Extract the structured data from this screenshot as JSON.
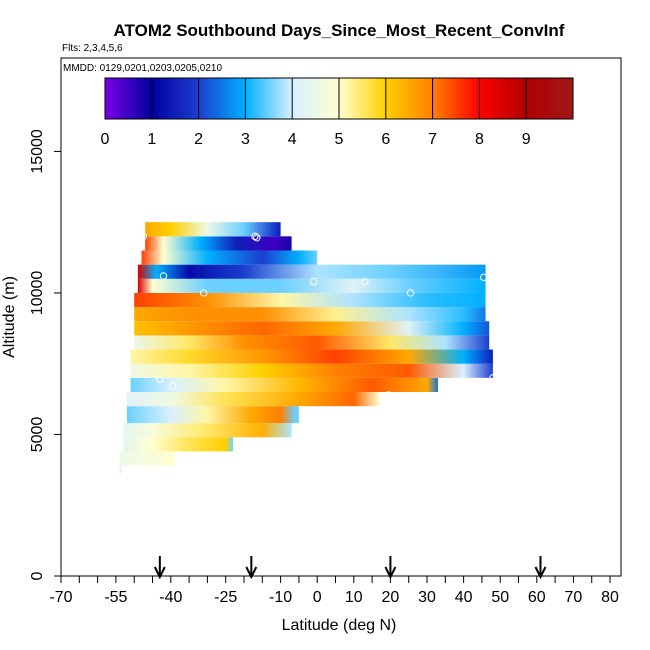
{
  "chart_data": {
    "type": "heatmap",
    "title": "ATOM2 Southbound Days_Since_Most_Recent_ConvInf",
    "flights_label": "Flts: 2,3,4,5,6",
    "dates_label": "MMDD: 0129,0201,0203,0205,0210",
    "xlabel": "Latitude (deg N)",
    "ylabel": "Altitude (m)",
    "xlim": [
      -70,
      83
    ],
    "ylim": [
      0,
      18300
    ],
    "x_ticks": [
      -70,
      -55,
      -40,
      -25,
      -10,
      0,
      10,
      20,
      30,
      40,
      50,
      60,
      70,
      80
    ],
    "x_tick_labels": [
      "-70",
      "-55",
      "-40",
      "-25",
      "-10",
      "0",
      "10",
      "20",
      "30",
      "40",
      "50",
      "60",
      "70",
      "80"
    ],
    "x_minor_ticks": [
      -65,
      -60,
      -50,
      -45,
      -35,
      -30,
      -20,
      -15,
      -5,
      5,
      15,
      25,
      35,
      45,
      55,
      65,
      75
    ],
    "y_ticks": [
      0,
      5000,
      10000,
      15000
    ],
    "y_tick_labels": [
      "0",
      "5000",
      "10000",
      "15000"
    ],
    "colorbar": {
      "min": 0,
      "max": 10,
      "ticks": [
        0,
        1,
        2,
        3,
        4,
        5,
        6,
        7,
        8,
        9
      ],
      "tick_labels": [
        "0",
        "1",
        "2",
        "3",
        "4",
        "5",
        "6",
        "7",
        "8",
        "9"
      ],
      "colors": [
        "#7b00e8",
        "#0000a0",
        "#1c3ecf",
        "#00b0ff",
        "#d8f0ff",
        "#ffffd0",
        "#ffd000",
        "#ff8000",
        "#ff0000",
        "#b00000",
        "#a01818"
      ]
    },
    "arrow_latitudes": [
      -43,
      -18,
      20,
      61
    ],
    "layers": [
      {
        "alt0": 3600,
        "alt1": 3900,
        "lat0": -54,
        "lat1": -53.5,
        "knots": [
          [
            -54,
            4.3
          ]
        ]
      },
      {
        "alt0": 3900,
        "alt1": 4400,
        "lat0": -54,
        "lat1": -39,
        "knots": [
          [
            -54,
            4.5
          ],
          [
            -39,
            5
          ]
        ]
      },
      {
        "alt0": 4400,
        "alt1": 4900,
        "lat0": -53,
        "lat1": -23,
        "knots": [
          [
            -53,
            4.3
          ],
          [
            -45,
            5
          ],
          [
            -35,
            5.6
          ],
          [
            -25,
            6
          ],
          [
            -23,
            3.5
          ]
        ]
      },
      {
        "alt0": 4900,
        "alt1": 5400,
        "lat0": -53,
        "lat1": -7,
        "knots": [
          [
            -53,
            4.3
          ],
          [
            -45,
            4.8
          ],
          [
            -30,
            5.5
          ],
          [
            -15,
            6.4
          ],
          [
            -7,
            3.8
          ]
        ]
      },
      {
        "alt0": 5400,
        "alt1": 6000,
        "lat0": -52,
        "lat1": -5,
        "knots": [
          [
            -52,
            3.5
          ],
          [
            -40,
            4
          ],
          [
            -30,
            5.2
          ],
          [
            -18,
            6.5
          ],
          [
            -10,
            7
          ],
          [
            -6,
            3.5
          ]
        ]
      },
      {
        "alt0": 6000,
        "alt1": 6500,
        "lat0": -52,
        "lat1": 17,
        "knots": [
          [
            -52,
            4.2
          ],
          [
            -40,
            4.6
          ],
          [
            -25,
            5.6
          ],
          [
            -5,
            6.5
          ],
          [
            10,
            7.2
          ],
          [
            17,
            5
          ]
        ]
      },
      {
        "alt0": 6500,
        "alt1": 7000,
        "lat0": -51,
        "lat1": 33,
        "knots": [
          [
            -51,
            3.5
          ],
          [
            -40,
            4
          ],
          [
            -25,
            5.2
          ],
          [
            -5,
            6.3
          ],
          [
            15,
            7.3
          ],
          [
            30,
            6.5
          ],
          [
            33,
            2.5
          ]
        ]
      },
      {
        "alt0": 7000,
        "alt1": 7500,
        "lat0": -51,
        "lat1": 48,
        "knots": [
          [
            -51,
            4.6
          ],
          [
            -35,
            5.2
          ],
          [
            -15,
            6
          ],
          [
            5,
            7
          ],
          [
            25,
            7.3
          ],
          [
            40,
            4
          ],
          [
            48,
            2
          ]
        ]
      },
      {
        "alt0": 7500,
        "alt1": 8000,
        "lat0": -51,
        "lat1": 48,
        "knots": [
          [
            -51,
            5.2
          ],
          [
            -35,
            5.8
          ],
          [
            -15,
            6.7
          ],
          [
            5,
            7.5
          ],
          [
            25,
            6.5
          ],
          [
            40,
            3
          ],
          [
            48,
            1.5
          ]
        ]
      },
      {
        "alt0": 8000,
        "alt1": 8500,
        "lat0": -50,
        "lat1": 47,
        "knots": [
          [
            -50,
            4.5
          ],
          [
            -35,
            5.5
          ],
          [
            -20,
            6.8
          ],
          [
            0,
            7.3
          ],
          [
            20,
            5.5
          ],
          [
            35,
            3.8
          ],
          [
            47,
            2
          ]
        ]
      },
      {
        "alt0": 8500,
        "alt1": 9000,
        "lat0": -50,
        "lat1": 47,
        "knots": [
          [
            -50,
            6.2
          ],
          [
            -35,
            6.7
          ],
          [
            -15,
            7.2
          ],
          [
            5,
            6.5
          ],
          [
            25,
            4.2
          ],
          [
            40,
            3
          ],
          [
            47,
            2.2
          ]
        ]
      },
      {
        "alt0": 9000,
        "alt1": 9500,
        "lat0": -50,
        "lat1": 46,
        "knots": [
          [
            -50,
            6.5
          ],
          [
            -35,
            6.8
          ],
          [
            -15,
            6.8
          ],
          [
            5,
            5.3
          ],
          [
            25,
            3.8
          ],
          [
            40,
            3.2
          ],
          [
            46,
            2.5
          ]
        ]
      },
      {
        "alt0": 9500,
        "alt1": 10000,
        "lat0": -50,
        "lat1": 46,
        "knots": [
          [
            -50,
            7.5
          ],
          [
            -30,
            6.8
          ],
          [
            -10,
            5.2
          ],
          [
            10,
            3.8
          ],
          [
            30,
            3.2
          ],
          [
            46,
            3
          ]
        ]
      },
      {
        "alt0": 10000,
        "alt1": 10500,
        "lat0": -49,
        "lat1": 46,
        "knots": [
          [
            -49,
            8.5
          ],
          [
            -45,
            5
          ],
          [
            -30,
            3.5
          ],
          [
            -10,
            3.5
          ],
          [
            10,
            4.2
          ],
          [
            25,
            3.5
          ],
          [
            46,
            3
          ]
        ]
      },
      {
        "alt0": 10500,
        "alt1": 11000,
        "lat0": -49,
        "lat1": 46,
        "knots": [
          [
            -49,
            8.5
          ],
          [
            -44,
            3
          ],
          [
            -35,
            1.2
          ],
          [
            -20,
            2
          ],
          [
            0,
            3.8
          ],
          [
            20,
            3.5
          ],
          [
            46,
            2.8
          ]
        ]
      },
      {
        "alt0": 11000,
        "alt1": 11500,
        "lat0": -48,
        "lat1": 0,
        "knots": [
          [
            -48,
            7.5
          ],
          [
            -42,
            5
          ],
          [
            -30,
            3
          ],
          [
            -15,
            2
          ],
          [
            -5,
            3
          ],
          [
            0,
            3.5
          ]
        ]
      },
      {
        "alt0": 11500,
        "alt1": 12000,
        "lat0": -47,
        "lat1": -7,
        "knots": [
          [
            -47,
            7.5
          ],
          [
            -42,
            5
          ],
          [
            -32,
            3
          ],
          [
            -22,
            1.5
          ],
          [
            -12,
            0.5
          ],
          [
            -7,
            0.8
          ]
        ]
      },
      {
        "alt0": 12000,
        "alt1": 12500,
        "lat0": -47,
        "lat1": -10,
        "knots": [
          [
            -47,
            6.5
          ],
          [
            -40,
            6
          ],
          [
            -30,
            4.5
          ],
          [
            -20,
            3.5
          ],
          [
            -12,
            2
          ],
          [
            -10,
            1.5
          ]
        ]
      }
    ],
    "markers": [
      [
        -48.5,
        12300
      ],
      [
        -47.5,
        12000
      ],
      [
        -42,
        10600
      ],
      [
        -31,
        10000
      ],
      [
        -17,
        12000
      ],
      [
        -16.5,
        11950
      ],
      [
        -1,
        10400
      ],
      [
        13,
        10400
      ],
      [
        25.5,
        10000
      ],
      [
        45.5,
        10550
      ],
      [
        -43,
        6950
      ],
      [
        -39.5,
        6700
      ],
      [
        19.5,
        6400
      ],
      [
        48,
        7000
      ]
    ]
  }
}
